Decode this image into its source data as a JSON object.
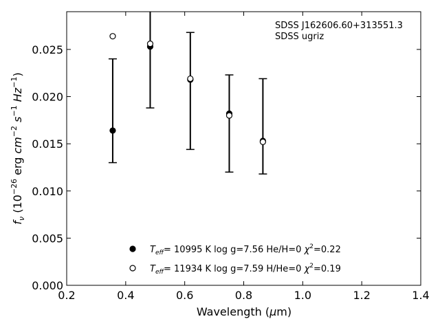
{
  "chart_data": {
    "type": "scatter",
    "annotation_lines": [
      "SDSS J162606.60+313551.3",
      "SDSS ugriz"
    ],
    "xlabel": "Wavelength (μm)",
    "ylabel": "fν (10⁻²⁶ erg cm⁻² s⁻¹ Hz⁻¹)",
    "xlim": [
      0.2,
      1.4
    ],
    "ylim": [
      0.0,
      0.029
    ],
    "x_ticks": [
      "0.2",
      "0.4",
      "0.6",
      "0.8",
      "1.0",
      "1.2",
      "1.4"
    ],
    "y_ticks": [
      "0.000",
      "0.005",
      "0.010",
      "0.015",
      "0.020",
      "0.025"
    ],
    "grid": false,
    "legend_position": "lower-center",
    "series": [
      {
        "name": "Teff= 10995 K  log g=7.56  He/H=0  χ²=0.22",
        "marker": "filled-circle",
        "color": "#000000",
        "x": [
          0.356,
          0.483,
          0.619,
          0.751,
          0.865
        ],
        "y": [
          0.0164,
          0.0253,
          0.0218,
          0.0182,
          0.0153
        ]
      },
      {
        "name": "Teff= 11934 K  log g=7.59  H/He=0  χ²=0.19",
        "marker": "open-circle",
        "color": "#000000",
        "x": [
          0.356,
          0.483,
          0.619,
          0.751,
          0.865
        ],
        "y": [
          0.0264,
          0.0256,
          0.0219,
          0.018,
          0.0152
        ]
      }
    ],
    "errorbars": {
      "x": [
        0.356,
        0.483,
        0.619,
        0.751,
        0.865
      ],
      "lower": [
        0.013,
        0.0188,
        0.0144,
        0.012,
        0.0118
      ],
      "upper": [
        0.024,
        0.029,
        0.0268,
        0.0223,
        0.0219
      ]
    }
  }
}
